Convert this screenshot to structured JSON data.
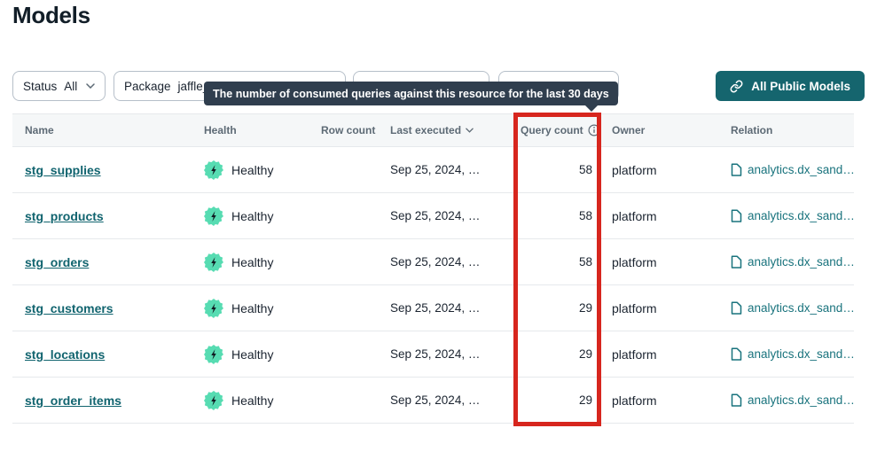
{
  "page": {
    "title": "Models"
  },
  "filters": {
    "status": {
      "label": "Status",
      "value": "All"
    },
    "package": {
      "label": "Package",
      "value": "jaffle_"
    },
    "filter3": {
      "label": "",
      "value": ""
    },
    "filter4": {
      "label": "",
      "value": ""
    }
  },
  "toolbar": {
    "all_public_models_label": "All Public Models"
  },
  "tooltip": {
    "text": "The number of consumed queries against this resource for the last 30 days"
  },
  "table": {
    "headers": {
      "name": "Name",
      "health": "Health",
      "row_count": "Row count",
      "last_executed": "Last executed",
      "query_count": "Query count",
      "owner": "Owner",
      "relation": "Relation"
    },
    "rows": [
      {
        "name": "stg_supplies",
        "health": "Healthy",
        "row_count": "",
        "last_executed": "Sep 25, 2024, …",
        "query_count": "58",
        "owner": "platform",
        "relation": "analytics.dx_sand…"
      },
      {
        "name": "stg_products",
        "health": "Healthy",
        "row_count": "",
        "last_executed": "Sep 25, 2024, …",
        "query_count": "58",
        "owner": "platform",
        "relation": "analytics.dx_sand…"
      },
      {
        "name": "stg_orders",
        "health": "Healthy",
        "row_count": "",
        "last_executed": "Sep 25, 2024, …",
        "query_count": "58",
        "owner": "platform",
        "relation": "analytics.dx_sand…"
      },
      {
        "name": "stg_customers",
        "health": "Healthy",
        "row_count": "",
        "last_executed": "Sep 25, 2024, …",
        "query_count": "29",
        "owner": "platform",
        "relation": "analytics.dx_sand…"
      },
      {
        "name": "stg_locations",
        "health": "Healthy",
        "row_count": "",
        "last_executed": "Sep 25, 2024, …",
        "query_count": "29",
        "owner": "platform",
        "relation": "analytics.dx_sand…"
      },
      {
        "name": "stg_order_items",
        "health": "Healthy",
        "row_count": "",
        "last_executed": "Sep 25, 2024, …",
        "query_count": "29",
        "owner": "platform",
        "relation": "analytics.dx_sand…"
      }
    ]
  },
  "icons": {
    "health_badge": "lightning-bolt-seal",
    "query_count_info": "info-circle",
    "last_executed_sort": "chevron-down",
    "relation": "document",
    "public_models_button": "link-chain"
  },
  "colors": {
    "accent_teal": "#15656e",
    "link_teal": "#11646f",
    "relation_teal": "#19737d",
    "badge_green": "#57dcb2",
    "tooltip_bg": "#303e4e",
    "highlight_red": "#d7261e",
    "header_bg": "#f5f7f8"
  }
}
